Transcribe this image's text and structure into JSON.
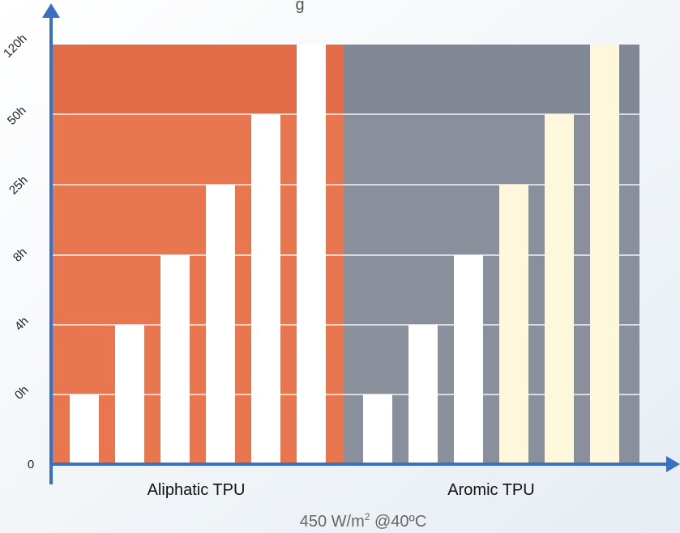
{
  "chart_data": {
    "type": "bar",
    "title": "",
    "top_label_fragment": "g",
    "xlabel": {
      "main": "450 W/m",
      "superscript": "2",
      "rest": " @40ºC"
    },
    "ylabel": "",
    "y_ticks": [
      "0",
      "0h",
      "4h",
      "8h",
      "25h",
      "50h",
      "120h"
    ],
    "y_scale": "ordinal",
    "grid": true,
    "groups": [
      {
        "name": "Aliphatic TPU",
        "background": "#e8764f",
        "bars": [
          {
            "value": "0h",
            "level": 1,
            "color": "#ffffff"
          },
          {
            "value": "4h",
            "level": 2,
            "color": "#ffffff"
          },
          {
            "value": "8h",
            "level": 3,
            "color": "#ffffff"
          },
          {
            "value": "25h",
            "level": 4,
            "color": "#ffffff"
          },
          {
            "value": "50h",
            "level": 5,
            "color": "#ffffff"
          },
          {
            "value": "120h",
            "level": 6,
            "color": "#ffffff"
          }
        ]
      },
      {
        "name": "Aromic TPU",
        "background": "#8a8f9c",
        "bars": [
          {
            "value": "0h",
            "level": 1,
            "color": "#ffffff"
          },
          {
            "value": "4h",
            "level": 2,
            "color": "#ffffff"
          },
          {
            "value": "8h",
            "level": 3,
            "color": "#ffffff"
          },
          {
            "value": "25h",
            "level": 4,
            "color": "#fdf8dc"
          },
          {
            "value": "50h",
            "level": 5,
            "color": "#fdf8dc"
          },
          {
            "value": "120h",
            "level": 6,
            "color": "#fdf8dc"
          }
        ]
      }
    ],
    "axis_color": "#3b6fc0"
  }
}
